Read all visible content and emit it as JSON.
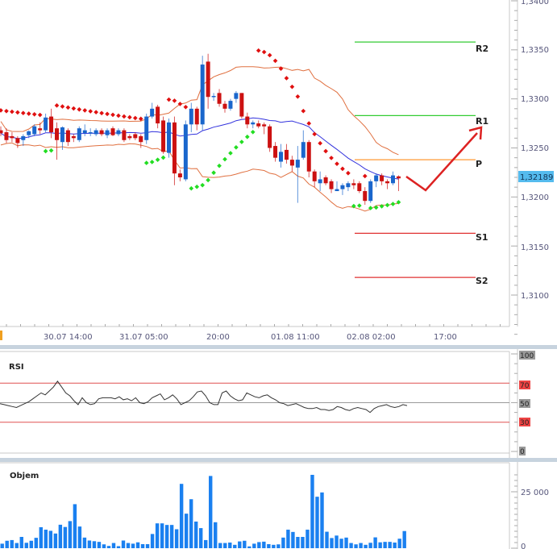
{
  "chart_data": [
    {
      "type": "candlestick",
      "title": "",
      "ylabel": "",
      "ylim": [
        1.306,
        1.34
      ],
      "y_ticks": [
        "1,3400",
        "1,3350",
        "1,3300",
        "1,3250",
        "1,3200",
        "1,3150",
        "1,3100"
      ],
      "y_tick_values": [
        1.34,
        1.335,
        1.33,
        1.325,
        1.32,
        1.315,
        1.31
      ],
      "x_tick_labels": [
        "30.07 14:00",
        "31.07 05:00",
        "20:00",
        "01.08 11:00",
        "02.08 02:00",
        "17:00"
      ],
      "current_price": "1,32189",
      "overlays": [
        "Bollinger Bands",
        "Parabolic SAR",
        "Pivot Points",
        "Forecast arrow"
      ],
      "pivot_levels": [
        {
          "name": "R2",
          "value": 1.3358,
          "color": "#33cc33"
        },
        {
          "name": "R1",
          "value": 1.3283,
          "color": "#33cc33"
        },
        {
          "name": "P",
          "value": 1.3238,
          "color": "#ff9933"
        },
        {
          "name": "S1",
          "value": 1.3163,
          "color": "#e03030"
        },
        {
          "name": "S2",
          "value": 1.3118,
          "color": "#e03030"
        }
      ],
      "candles": [
        {
          "o": 1.3268,
          "h": 1.3272,
          "l": 1.3262,
          "c": 1.3265
        },
        {
          "o": 1.3266,
          "h": 1.327,
          "l": 1.3255,
          "c": 1.3258
        },
        {
          "o": 1.3262,
          "h": 1.3266,
          "l": 1.3256,
          "c": 1.326
        },
        {
          "o": 1.326,
          "h": 1.3262,
          "l": 1.325,
          "c": 1.3255
        },
        {
          "o": 1.3258,
          "h": 1.3264,
          "l": 1.3252,
          "c": 1.3262
        },
        {
          "o": 1.3263,
          "h": 1.3268,
          "l": 1.326,
          "c": 1.3267
        },
        {
          "o": 1.3264,
          "h": 1.3274,
          "l": 1.3262,
          "c": 1.3272
        },
        {
          "o": 1.327,
          "h": 1.3276,
          "l": 1.3264,
          "c": 1.3268
        },
        {
          "o": 1.3268,
          "h": 1.3285,
          "l": 1.3266,
          "c": 1.3281
        },
        {
          "o": 1.3282,
          "h": 1.329,
          "l": 1.326,
          "c": 1.3266
        },
        {
          "o": 1.327,
          "h": 1.3276,
          "l": 1.3238,
          "c": 1.3258
        },
        {
          "o": 1.3256,
          "h": 1.3272,
          "l": 1.3248,
          "c": 1.3271
        },
        {
          "o": 1.3268,
          "h": 1.327,
          "l": 1.3252,
          "c": 1.3256
        },
        {
          "o": 1.3262,
          "h": 1.3264,
          "l": 1.3256,
          "c": 1.326
        },
        {
          "o": 1.3258,
          "h": 1.3272,
          "l": 1.3256,
          "c": 1.327
        },
        {
          "o": 1.3265,
          "h": 1.3274,
          "l": 1.3262,
          "c": 1.3268
        },
        {
          "o": 1.3265,
          "h": 1.327,
          "l": 1.3262,
          "c": 1.3266
        },
        {
          "o": 1.3264,
          "h": 1.327,
          "l": 1.3262,
          "c": 1.3268
        },
        {
          "o": 1.3268,
          "h": 1.327,
          "l": 1.3262,
          "c": 1.3264
        },
        {
          "o": 1.3263,
          "h": 1.327,
          "l": 1.326,
          "c": 1.3268
        },
        {
          "o": 1.327,
          "h": 1.3272,
          "l": 1.3262,
          "c": 1.3263
        },
        {
          "o": 1.3264,
          "h": 1.327,
          "l": 1.3262,
          "c": 1.3268
        },
        {
          "o": 1.3268,
          "h": 1.327,
          "l": 1.3256,
          "c": 1.3258
        },
        {
          "o": 1.3262,
          "h": 1.3264,
          "l": 1.3258,
          "c": 1.326
        },
        {
          "o": 1.3264,
          "h": 1.3266,
          "l": 1.3258,
          "c": 1.326
        },
        {
          "o": 1.3262,
          "h": 1.3264,
          "l": 1.325,
          "c": 1.3256
        },
        {
          "o": 1.3258,
          "h": 1.3285,
          "l": 1.3254,
          "c": 1.3282
        },
        {
          "o": 1.3282,
          "h": 1.3296,
          "l": 1.328,
          "c": 1.329
        },
        {
          "o": 1.3292,
          "h": 1.3294,
          "l": 1.327,
          "c": 1.3275
        },
        {
          "o": 1.3278,
          "h": 1.3282,
          "l": 1.3244,
          "c": 1.3246
        },
        {
          "o": 1.3245,
          "h": 1.328,
          "l": 1.324,
          "c": 1.3276
        },
        {
          "o": 1.3276,
          "h": 1.3282,
          "l": 1.3212,
          "c": 1.3224
        },
        {
          "o": 1.3224,
          "h": 1.3228,
          "l": 1.3216,
          "c": 1.322
        },
        {
          "o": 1.3218,
          "h": 1.3278,
          "l": 1.3216,
          "c": 1.3274
        },
        {
          "o": 1.3274,
          "h": 1.3296,
          "l": 1.3266,
          "c": 1.329
        },
        {
          "o": 1.329,
          "h": 1.3292,
          "l": 1.3268,
          "c": 1.3274
        },
        {
          "o": 1.3274,
          "h": 1.3344,
          "l": 1.3268,
          "c": 1.3335
        },
        {
          "o": 1.3338,
          "h": 1.3346,
          "l": 1.329,
          "c": 1.3302
        },
        {
          "o": 1.3302,
          "h": 1.3306,
          "l": 1.3298,
          "c": 1.3303
        },
        {
          "o": 1.3306,
          "h": 1.331,
          "l": 1.3292,
          "c": 1.3295
        },
        {
          "o": 1.3295,
          "h": 1.3298,
          "l": 1.3286,
          "c": 1.329
        },
        {
          "o": 1.329,
          "h": 1.33,
          "l": 1.3288,
          "c": 1.3298
        },
        {
          "o": 1.33,
          "h": 1.3308,
          "l": 1.3296,
          "c": 1.3306
        },
        {
          "o": 1.3306,
          "h": 1.3306,
          "l": 1.328,
          "c": 1.3282
        },
        {
          "o": 1.3282,
          "h": 1.3286,
          "l": 1.327,
          "c": 1.3274
        },
        {
          "o": 1.3274,
          "h": 1.3278,
          "l": 1.327,
          "c": 1.3276
        },
        {
          "o": 1.3275,
          "h": 1.3278,
          "l": 1.327,
          "c": 1.3272
        },
        {
          "o": 1.3274,
          "h": 1.3276,
          "l": 1.3264,
          "c": 1.3272
        },
        {
          "o": 1.3272,
          "h": 1.3274,
          "l": 1.3246,
          "c": 1.325
        },
        {
          "o": 1.3252,
          "h": 1.3256,
          "l": 1.3236,
          "c": 1.324
        },
        {
          "o": 1.3236,
          "h": 1.3254,
          "l": 1.323,
          "c": 1.3246
        },
        {
          "o": 1.3248,
          "h": 1.3254,
          "l": 1.3234,
          "c": 1.3238
        },
        {
          "o": 1.3238,
          "h": 1.3242,
          "l": 1.3226,
          "c": 1.3232
        },
        {
          "o": 1.323,
          "h": 1.3252,
          "l": 1.3194,
          "c": 1.3238
        },
        {
          "o": 1.324,
          "h": 1.3268,
          "l": 1.3238,
          "c": 1.3256
        },
        {
          "o": 1.3256,
          "h": 1.3258,
          "l": 1.322,
          "c": 1.3226
        },
        {
          "o": 1.3226,
          "h": 1.3228,
          "l": 1.321,
          "c": 1.3216
        },
        {
          "o": 1.3214,
          "h": 1.3226,
          "l": 1.3206,
          "c": 1.3218
        },
        {
          "o": 1.322,
          "h": 1.3222,
          "l": 1.3212,
          "c": 1.3214
        },
        {
          "o": 1.3216,
          "h": 1.3218,
          "l": 1.3204,
          "c": 1.3208
        },
        {
          "o": 1.3206,
          "h": 1.3216,
          "l": 1.3206,
          "c": 1.3208
        },
        {
          "o": 1.3208,
          "h": 1.3214,
          "l": 1.3202,
          "c": 1.3212
        },
        {
          "o": 1.321,
          "h": 1.3216,
          "l": 1.3206,
          "c": 1.3214
        },
        {
          "o": 1.3214,
          "h": 1.3218,
          "l": 1.3208,
          "c": 1.3212
        },
        {
          "o": 1.3214,
          "h": 1.3216,
          "l": 1.3204,
          "c": 1.3206
        },
        {
          "o": 1.3206,
          "h": 1.321,
          "l": 1.3192,
          "c": 1.3196
        },
        {
          "o": 1.3196,
          "h": 1.3218,
          "l": 1.3194,
          "c": 1.3216
        },
        {
          "o": 1.3216,
          "h": 1.3224,
          "l": 1.321,
          "c": 1.3222
        },
        {
          "o": 1.3222,
          "h": 1.3224,
          "l": 1.3212,
          "c": 1.3216
        },
        {
          "o": 1.3216,
          "h": 1.3218,
          "l": 1.3208,
          "c": 1.3214
        },
        {
          "o": 1.3214,
          "h": 1.3226,
          "l": 1.3212,
          "c": 1.3222
        },
        {
          "o": 1.3221,
          "h": 1.3222,
          "l": 1.3206,
          "c": 1.3219
        }
      ]
    },
    {
      "type": "line",
      "title": "RSI",
      "ylim": [
        0,
        100
      ],
      "y_ticks": [
        "100",
        "70",
        "50",
        "30",
        "0"
      ],
      "levels": [
        {
          "value": 70,
          "color": "#e05050"
        },
        {
          "value": 50,
          "color": "#999999"
        },
        {
          "value": 30,
          "color": "#e05050"
        }
      ],
      "values": [
        49,
        48,
        47,
        46,
        45,
        47,
        49,
        51,
        54,
        57,
        60,
        58,
        62,
        66,
        72,
        66,
        60,
        57,
        52,
        48,
        55,
        50,
        48,
        49,
        54,
        55,
        55,
        55,
        54,
        56,
        53,
        54,
        52,
        55,
        50,
        49,
        51,
        55,
        57,
        59,
        53,
        55,
        58,
        54,
        48,
        50,
        52,
        56,
        61,
        62,
        57,
        50,
        48,
        48,
        60,
        62,
        57,
        54,
        52,
        53,
        60,
        58,
        56,
        55,
        57,
        58,
        55,
        53,
        50,
        49,
        47,
        48,
        49,
        47,
        45,
        44,
        44,
        45,
        43,
        43,
        42,
        43,
        46,
        45,
        43,
        42,
        44,
        45,
        44,
        43,
        40,
        44,
        46,
        47,
        48,
        46,
        45,
        46,
        48,
        47
      ]
    },
    {
      "type": "bar",
      "title": "Objem",
      "ylim": [
        0,
        33000
      ],
      "y_ticks": [
        "25 000",
        "0"
      ],
      "values": [
        2000,
        3300,
        3600,
        2300,
        5000,
        2400,
        3300,
        4600,
        9300,
        8200,
        7700,
        6500,
        10400,
        9400,
        12000,
        19500,
        9600,
        4700,
        3400,
        3100,
        2800,
        1700,
        1000,
        2300,
        900,
        3400,
        2300,
        2000,
        2600,
        1800,
        1800,
        6300,
        11000,
        11000,
        10300,
        10300,
        8400,
        28500,
        15300,
        21700,
        11800,
        8900,
        3600,
        32000,
        11500,
        2300,
        2300,
        2500,
        1500,
        3000,
        3300,
        800,
        2000,
        2700,
        2900,
        1800,
        1500,
        1700,
        4700,
        8200,
        7200,
        5000,
        5000,
        8200,
        32500,
        22800,
        24700,
        7300,
        4500,
        5600,
        4200,
        4700,
        2300,
        1700,
        2300,
        1500,
        2400,
        4800,
        2600,
        2800,
        2800,
        2500,
        4200,
        7600
      ]
    }
  ],
  "main_panel": {
    "price_axis_labels": [
      "1,3400",
      "1,3350",
      "1,3300",
      "1,3250",
      "1,3200",
      "1,3150",
      "1,3100"
    ],
    "current_price_badge": "1,32189",
    "pivot_labels": [
      "R2",
      "R1",
      "P",
      "S1",
      "S2"
    ],
    "time_labels": [
      "30.07 14:00",
      "31.07 05:00",
      "20:00",
      "01.08 11:00",
      "02.08 02:00",
      "17:00"
    ]
  },
  "rsi_panel": {
    "title": "RSI",
    "axis_labels": [
      "100",
      "70",
      "50",
      "30",
      "0"
    ]
  },
  "volume_panel": {
    "title": "Objem",
    "axis_labels": [
      "25 000",
      "0"
    ]
  },
  "colors": {
    "bull": "#1a66cc",
    "bear": "#cc1111",
    "sar_down": "#e01010",
    "sar_up": "#22dd22",
    "bollinger": "#e07040",
    "midline": "#3333dd",
    "axis_text": "#55557a",
    "badge_current": "#55bbee",
    "volume_bar": "#1a80f0",
    "forecast_arrow": "#dd2222"
  }
}
